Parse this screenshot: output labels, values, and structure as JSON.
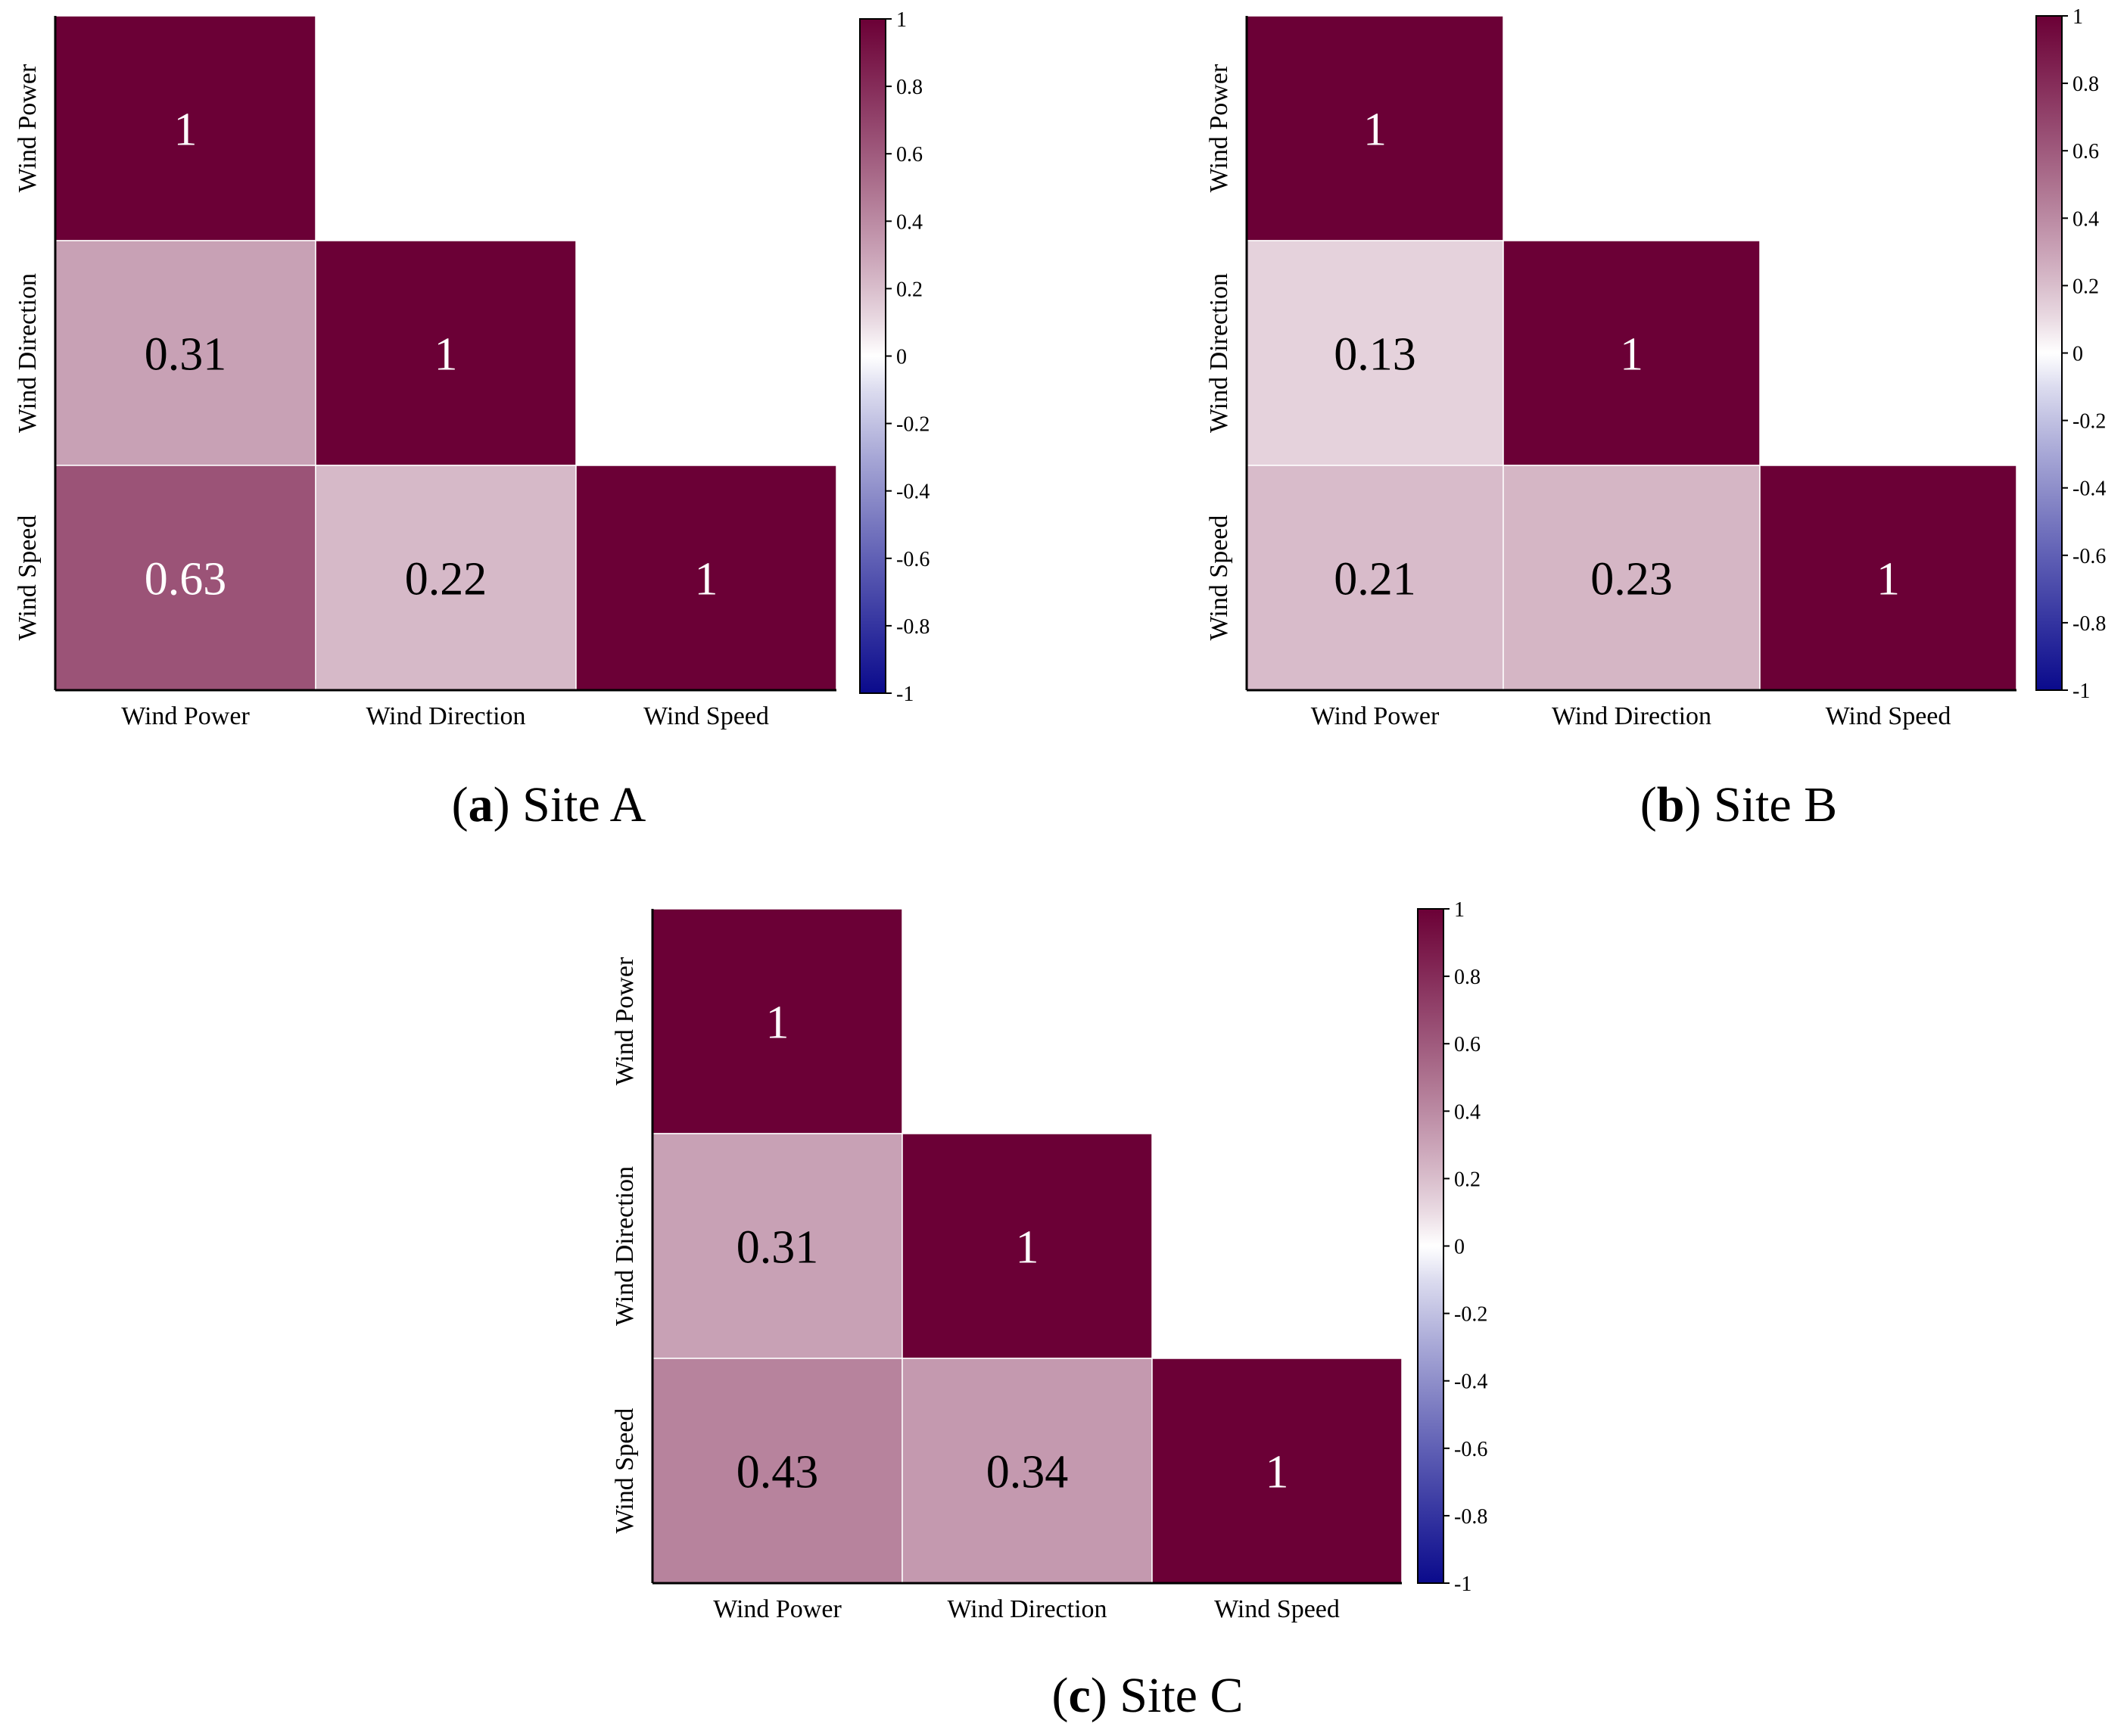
{
  "chart_data": [
    {
      "type": "heatmap",
      "panel_label": "a",
      "caption": "Site A",
      "rows": [
        "Wind Power",
        "Wind Direction",
        "Wind Speed"
      ],
      "columns": [
        "Wind Power",
        "Wind Direction",
        "Wind Speed"
      ],
      "triangle": "lower",
      "values": [
        [
          1,
          null,
          null
        ],
        [
          0.31,
          1,
          null
        ],
        [
          0.63,
          0.22,
          1
        ]
      ],
      "value_labels": [
        [
          "1",
          "",
          ""
        ],
        [
          "0.31",
          "1",
          ""
        ],
        [
          "0.63",
          "0.22",
          "1"
        ]
      ],
      "colorbar": {
        "range": [
          -1,
          1
        ],
        "ticks": [
          "1",
          "0.8",
          "0.6",
          "0.4",
          "0.2",
          "0",
          "-0.2",
          "-0.4",
          "-0.6",
          "-0.8",
          "-1"
        ],
        "low_color": "#0a0a8c",
        "mid_color": "#ffffff",
        "high_color": "#6b0036"
      }
    },
    {
      "type": "heatmap",
      "panel_label": "b",
      "caption": "Site B",
      "rows": [
        "Wind Power",
        "Wind Direction",
        "Wind Speed"
      ],
      "columns": [
        "Wind Power",
        "Wind Direction",
        "Wind Speed"
      ],
      "triangle": "lower",
      "values": [
        [
          1,
          null,
          null
        ],
        [
          0.13,
          1,
          null
        ],
        [
          0.21,
          0.23,
          1
        ]
      ],
      "value_labels": [
        [
          "1",
          "",
          ""
        ],
        [
          "0.13",
          "1",
          ""
        ],
        [
          "0.21",
          "0.23",
          "1"
        ]
      ],
      "colorbar": {
        "range": [
          -1,
          1
        ],
        "ticks": [
          "1",
          "0.8",
          "0.6",
          "0.4",
          "0.2",
          "0",
          "-0.2",
          "-0.4",
          "-0.6",
          "-0.8",
          "-1"
        ],
        "low_color": "#0a0a8c",
        "mid_color": "#ffffff",
        "high_color": "#6b0036"
      }
    },
    {
      "type": "heatmap",
      "panel_label": "c",
      "caption": "Site C",
      "rows": [
        "Wind Power",
        "Wind Direction",
        "Wind Speed"
      ],
      "columns": [
        "Wind Power",
        "Wind Direction",
        "Wind Speed"
      ],
      "triangle": "lower",
      "values": [
        [
          1,
          null,
          null
        ],
        [
          0.31,
          1,
          null
        ],
        [
          0.43,
          0.34,
          1
        ]
      ],
      "value_labels": [
        [
          "1",
          "",
          ""
        ],
        [
          "0.31",
          "1",
          ""
        ],
        [
          "0.43",
          "0.34",
          "1"
        ]
      ],
      "colorbar": {
        "range": [
          -1,
          1
        ],
        "ticks": [
          "1",
          "0.8",
          "0.6",
          "0.4",
          "0.2",
          "0",
          "-0.2",
          "-0.4",
          "-0.6",
          "-0.8",
          "-1"
        ],
        "low_color": "#0a0a8c",
        "mid_color": "#ffffff",
        "high_color": "#6b0036"
      }
    }
  ]
}
